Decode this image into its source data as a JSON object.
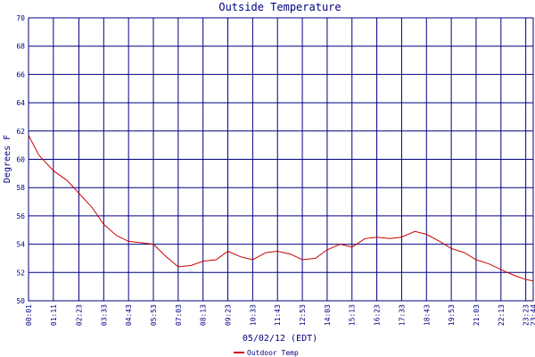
{
  "chart_data": {
    "type": "line",
    "title": "Outside Temperature",
    "xlabel": "05/02/12 (EDT)",
    "ylabel": "Degrees F",
    "ylim": [
      50,
      70
    ],
    "yticks": [
      50,
      52,
      54,
      56,
      58,
      60,
      62,
      64,
      66,
      68,
      70
    ],
    "x_ticks": [
      "00:01",
      "01:11",
      "02:23",
      "03:33",
      "04:43",
      "05:53",
      "07:03",
      "08:13",
      "09:23",
      "10:33",
      "11:43",
      "12:53",
      "14:03",
      "15:13",
      "16:23",
      "17:33",
      "18:43",
      "19:53",
      "21:03",
      "22:13",
      "23:23",
      "23:44"
    ],
    "grid": true,
    "legend_position": "bottom-center",
    "colors": {
      "line": "#cc0000",
      "grid": "#000080",
      "text": "#000080"
    },
    "series": [
      {
        "name": "Outdoor Temp",
        "x": [
          "00:01",
          "00:30",
          "01:11",
          "01:50",
          "02:23",
          "03:00",
          "03:33",
          "04:10",
          "04:43",
          "05:20",
          "05:53",
          "06:30",
          "07:03",
          "07:40",
          "08:13",
          "08:50",
          "09:23",
          "10:00",
          "10:33",
          "11:10",
          "11:43",
          "12:20",
          "12:53",
          "13:30",
          "14:03",
          "14:40",
          "15:13",
          "15:50",
          "16:23",
          "17:00",
          "17:33",
          "18:10",
          "18:43",
          "19:20",
          "19:53",
          "20:30",
          "21:03",
          "21:40",
          "22:13",
          "22:50",
          "23:23",
          "23:44"
        ],
        "values": [
          61.7,
          60.3,
          59.2,
          58.5,
          57.6,
          56.6,
          55.4,
          54.6,
          54.2,
          54.1,
          54.0,
          53.1,
          52.4,
          52.5,
          52.8,
          52.9,
          53.5,
          53.1,
          52.9,
          53.4,
          53.5,
          53.3,
          52.9,
          53.0,
          53.6,
          54.0,
          53.8,
          54.4,
          54.5,
          54.4,
          54.5,
          54.9,
          54.7,
          54.2,
          53.7,
          53.4,
          52.9,
          52.6,
          52.2,
          51.8,
          51.5,
          51.4
        ]
      }
    ]
  }
}
